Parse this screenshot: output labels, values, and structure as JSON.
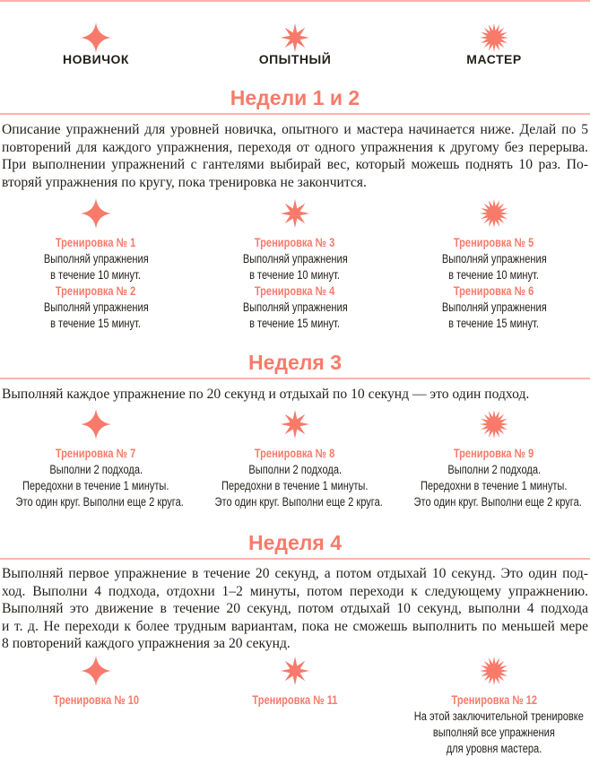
{
  "accent_color": "#f87a6a",
  "levels": [
    {
      "label": "НОВИЧОК",
      "icon": "four-point-star-icon"
    },
    {
      "label": "ОПЫТНЫЙ",
      "icon": "eight-point-star-icon"
    },
    {
      "label": "МАСТЕР",
      "icon": "sunburst-icon"
    }
  ],
  "sections": [
    {
      "heading": "Недели 1 и 2",
      "paragraph": [
        "Описание упражнений для уровней новичка, опытного и мастера начинается ниже. Делай по 5",
        "повторений для каждого упражнения, переходя от одного упражнения к другому без перерыва.",
        "При выполнении упражнений с гантелями выбирай вес, который можешь поднять 10 раз. По-",
        "вторяй упражнения по кругу, пока тренировка не закончится."
      ],
      "columns": [
        [
          {
            "title": "Тренировка № 1",
            "lines": [
              "Выполняй упражнения",
              "в течение 10 минут."
            ]
          },
          {
            "title": "Тренировка № 2",
            "lines": [
              "Выполняй упражнения",
              "в течение 15 минут."
            ]
          }
        ],
        [
          {
            "title": "Тренировка № 3",
            "lines": [
              "Выполняй упражнения",
              "в течение 10 минут."
            ]
          },
          {
            "title": "Тренировка № 4",
            "lines": [
              "Выполняй упражнения",
              "в течение 15 минут."
            ]
          }
        ],
        [
          {
            "title": "Тренировка № 5",
            "lines": [
              "Выполняй упражнения",
              "в течение 10 минут."
            ]
          },
          {
            "title": "Тренировка № 6",
            "lines": [
              "Выполняй упражнения",
              "в течение 15 минут."
            ]
          }
        ]
      ]
    },
    {
      "heading": "Неделя 3",
      "paragraph": [
        "Выполняй каждое упражнение по 20 секунд и отдыхай по 10 секунд — это один подход."
      ],
      "columns": [
        [
          {
            "title": "Тренировка № 7",
            "lines": [
              "Выполни 2 подхода.",
              "Передохни в течение 1 минуты.",
              "Это один круг. Выполни еще 2 круга."
            ]
          }
        ],
        [
          {
            "title": "Тренировка № 8",
            "lines": [
              "Выполни 2 подхода.",
              "Передохни в течение 1 минуты.",
              "Это один круг. Выполни еще 2 круга."
            ]
          }
        ],
        [
          {
            "title": "Тренировка № 9",
            "lines": [
              "Выполни 2 подхода.",
              "Передохни в течение 1 минуты.",
              "Это один круг. Выполни еще 2 круга."
            ]
          }
        ]
      ]
    },
    {
      "heading": "Неделя 4",
      "paragraph": [
        "Выполняй первое упражнение в течение 20 секунд, а потом отдыхай 10 секунд. Это один под-",
        "ход. Выполни 4 подхода, отдохни 1–2 минуты, потом переходи к следующему упражнению.",
        "Выполняй это движение в течение 20 секунд, потом отдыхай 10 секунд, выполни 4 подхода",
        "и т. д. Не переходи к более трудным вариантам, пока не сможешь выполнить по меньшей мере",
        "8 повторений каждого упражнения за 20 секунд."
      ],
      "columns": [
        [
          {
            "title": "Тренировка № 10",
            "lines": []
          }
        ],
        [
          {
            "title": "Тренировка № 11",
            "lines": []
          }
        ],
        [
          {
            "title": "Тренировка № 12",
            "lines": [
              "На этой заключительной тренировке",
              "выполняй все упражнения",
              "для уровня мастера."
            ]
          }
        ]
      ]
    }
  ]
}
